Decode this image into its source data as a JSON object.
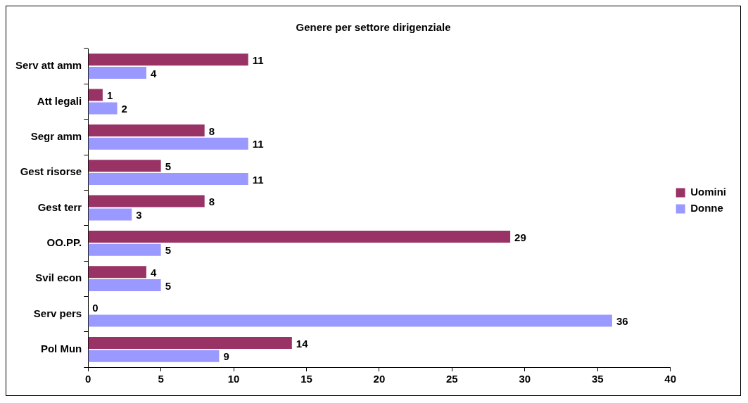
{
  "chart_data": {
    "type": "bar",
    "orientation": "horizontal",
    "title": "Genere per settore dirigenziale",
    "categories": [
      "Serv att amm",
      "Att legali",
      "Segr amm",
      "Gest risorse",
      "Gest terr",
      "OO.PP.",
      "Svil econ",
      "Serv pers",
      "Pol Mun"
    ],
    "series": [
      {
        "name": "Uomini",
        "color": "#993366",
        "values": [
          11,
          1,
          8,
          5,
          8,
          29,
          4,
          0,
          14
        ]
      },
      {
        "name": "Donne",
        "color": "#9999ff",
        "values": [
          4,
          2,
          11,
          11,
          3,
          5,
          5,
          36,
          9
        ]
      }
    ],
    "xlim": [
      0,
      40
    ],
    "xticks": [
      0,
      5,
      10,
      15,
      20,
      25,
      30,
      35,
      40
    ],
    "grid": false,
    "legend": "right",
    "data_labels": true
  }
}
